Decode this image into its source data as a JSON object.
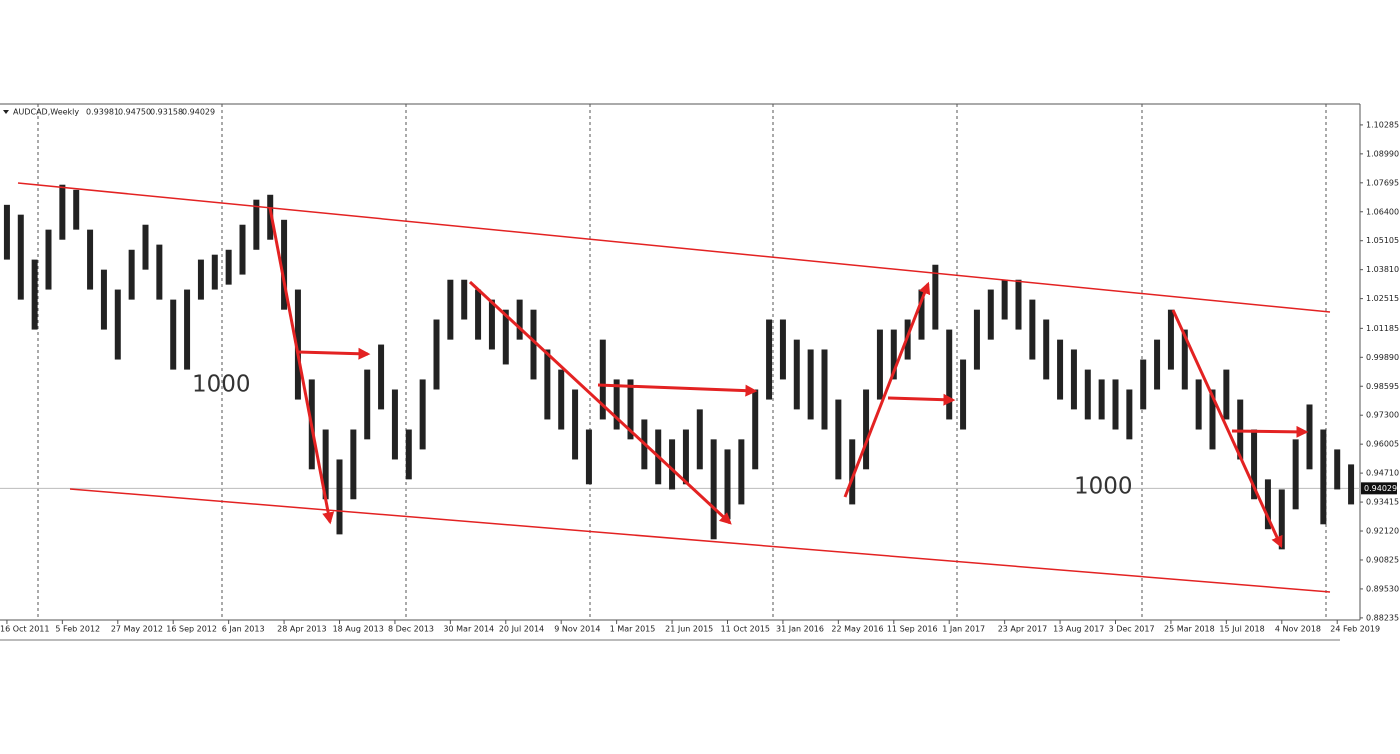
{
  "chart_data": {
    "type": "range",
    "symbol": "AUDCAD,Weekly",
    "header_values": [
      {
        "value": 0.93981,
        "label": "0.93981"
      },
      {
        "value": 0.9475,
        "label": "0.94750"
      },
      {
        "value": 0.93158,
        "label": "0.93158"
      },
      {
        "value": 0.94029,
        "label": "0.94029"
      }
    ],
    "annotations": [
      "1000",
      "1000"
    ],
    "color": "#222222",
    "categories": [
      "16 Oct 2011",
      null,
      null,
      null,
      "5 Feb 2012",
      null,
      null,
      null,
      "27 May 2012",
      null,
      null,
      null,
      "16 Sep 2012",
      null,
      null,
      null,
      "6 Jan 2013",
      null,
      null,
      null,
      "28 Apr 2013",
      null,
      null,
      null,
      "18 Aug 2013",
      null,
      null,
      null,
      "8 Dec 2013",
      null,
      null,
      null,
      "30 Mar 2014",
      null,
      null,
      null,
      "20 Jul 2014",
      null,
      null,
      null,
      "9 Nov 2014",
      null,
      null,
      null,
      "1 Mar 2015",
      null,
      null,
      null,
      "21 Jun 2015",
      null,
      null,
      null,
      "11 Oct 2015",
      null,
      null,
      null,
      "31 Jan 2016",
      null,
      null,
      null,
      "22 May 2016",
      null,
      null,
      null,
      "11 Sep 2016",
      null,
      null,
      null,
      "1 Jan 2017",
      null,
      null,
      null,
      "23 Apr 2017",
      null,
      null,
      null,
      "13 Aug 2017",
      null,
      null,
      null,
      "3 Dec 2017",
      null,
      null,
      null,
      "25 Mar 2018",
      null,
      null,
      null,
      "15 Jul 2018",
      null,
      null,
      null,
      "4 Nov 2018",
      null,
      null,
      null,
      "24 Feb 2019",
      null
    ],
    "high": [
      1.0671,
      1.0627,
      1.0426,
      1.056,
      1.0761,
      1.0738,
      1.056,
      1.0381,
      1.0292,
      1.047,
      1.0582,
      1.0493,
      1.0247,
      1.0292,
      1.0426,
      1.0448,
      1.047,
      1.0582,
      1.0694,
      1.0716,
      1.0604,
      1.0292,
      0.989,
      0.9666,
      0.9532,
      0.9666,
      0.9934,
      1.0046,
      0.9845,
      0.9666,
      0.989,
      1.0158,
      1.0336,
      1.0336,
      1.0292,
      1.0247,
      1.0202,
      1.0247,
      1.0202,
      1.0024,
      0.9934,
      0.9845,
      0.9666,
      1.0068,
      0.989,
      0.989,
      0.9711,
      0.9666,
      0.9622,
      0.9666,
      0.9756,
      0.9622,
      0.9577,
      0.9622,
      0.9845,
      1.0158,
      1.0158,
      1.0068,
      1.0024,
      1.0024,
      0.98,
      0.9622,
      0.9845,
      1.0113,
      1.0113,
      1.0158,
      1.0292,
      1.0403,
      1.0113,
      0.9979,
      1.0202,
      1.0292,
      1.0336,
      1.0336,
      1.0247,
      1.0158,
      1.0068,
      1.0024,
      0.9934,
      0.989,
      0.989,
      0.9845,
      0.9979,
      1.0068,
      1.0202,
      1.0113,
      0.989,
      0.9845,
      0.9934,
      0.98,
      0.9666,
      0.9443,
      0.9398,
      0.9622,
      0.9778,
      0.9666,
      0.9577,
      0.951
    ],
    "low": [
      1.0426,
      1.0247,
      1.0113,
      1.0292,
      1.0515,
      1.056,
      1.0292,
      1.0113,
      0.9979,
      1.0247,
      1.0381,
      1.0247,
      0.9934,
      0.9934,
      1.0247,
      1.0292,
      1.0314,
      1.0359,
      1.047,
      1.0515,
      1.0202,
      0.98,
      0.9488,
      0.9354,
      0.9197,
      0.9354,
      0.9622,
      0.9756,
      0.9532,
      0.9443,
      0.9577,
      0.9845,
      1.0068,
      1.0158,
      1.0068,
      1.0024,
      0.9957,
      1.0068,
      0.989,
      0.9711,
      0.9666,
      0.9532,
      0.9421,
      0.9711,
      0.9666,
      0.9622,
      0.9488,
      0.9421,
      0.9398,
      0.9421,
      0.9488,
      0.9175,
      0.9264,
      0.9331,
      0.9488,
      0.98,
      0.989,
      0.9756,
      0.9711,
      0.9666,
      0.9443,
      0.9331,
      0.9488,
      0.98,
      0.989,
      0.9979,
      1.0068,
      1.0113,
      0.9711,
      0.9666,
      0.9934,
      1.0068,
      1.0158,
      1.0113,
      0.9979,
      0.989,
      0.98,
      0.9756,
      0.9711,
      0.9711,
      0.9666,
      0.9622,
      0.9756,
      0.9845,
      0.9934,
      0.9845,
      0.9666,
      0.9577,
      0.9711,
      0.9532,
      0.9354,
      0.922,
      0.913,
      0.9309,
      0.9488,
      0.9242,
      0.9398,
      0.9331
    ],
    "last": 0.94029,
    "ylim": [
      0.8814,
      1.1122
    ],
    "yticks": [
      1.10285,
      {
        "value": 1.0899,
        "label": "1.08990"
      },
      1.07695,
      {
        "value": 1.064,
        "label": "1.06400"
      },
      1.05105,
      {
        "value": 1.0381,
        "label": "1.03810"
      },
      1.02515,
      1.01185,
      {
        "value": 0.9989,
        "label": "0.99890"
      },
      0.98595,
      {
        "value": 0.973,
        "label": "0.97300"
      },
      0.96005,
      {
        "value": 0.9471,
        "label": "0.94710"
      },
      0.93415,
      {
        "value": 0.9212,
        "label": "0.92120"
      },
      0.90825,
      {
        "value": 0.8953,
        "label": "0.89530"
      },
      0.88235
    ]
  }
}
